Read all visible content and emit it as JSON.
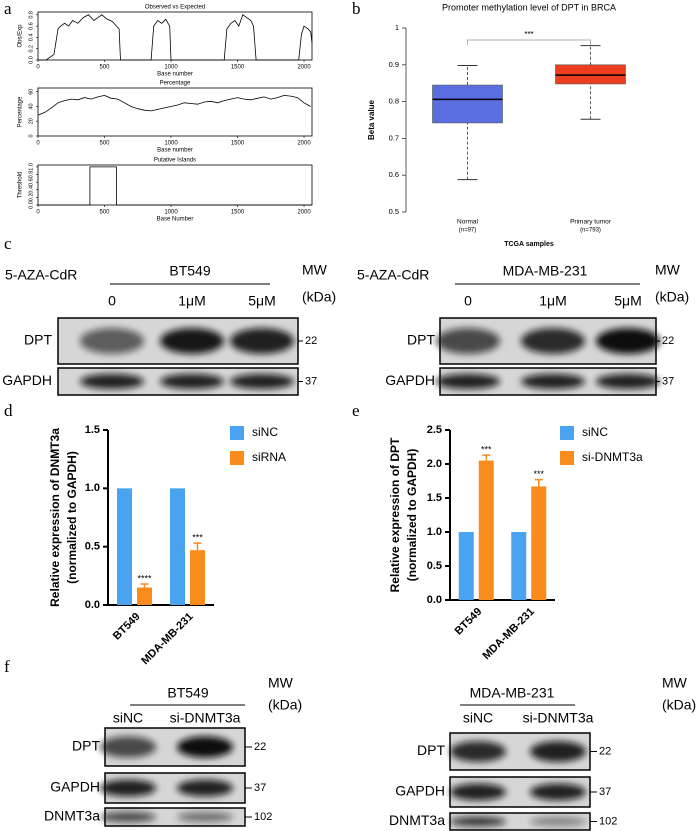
{
  "panel_labels": [
    "a",
    "b",
    "c",
    "d",
    "e",
    "f"
  ],
  "chart_data": [
    {
      "type": "line",
      "title": "Observed vs Expected",
      "xlabel": "Base number",
      "ylabel": "Obs/Exp",
      "x": [
        0,
        60,
        120,
        150,
        170,
        200,
        230,
        260,
        300,
        340,
        380,
        420,
        450,
        480,
        520,
        560,
        590,
        610,
        620,
        700,
        850,
        870,
        900,
        930,
        960,
        990,
        1000,
        1100,
        1400,
        1420,
        1450,
        1480,
        1510,
        1540,
        1570,
        1600,
        1620,
        1640,
        1700,
        1960,
        1980,
        2000,
        2030,
        2050,
        2060
      ],
      "values": [
        0,
        0,
        0.1,
        0.55,
        0.6,
        0.65,
        0.6,
        0.7,
        0.65,
        0.75,
        0.8,
        0.7,
        0.75,
        0.8,
        0.72,
        0.68,
        0.6,
        0.55,
        0,
        0,
        0,
        0.6,
        0.7,
        0.65,
        0.72,
        0.6,
        0,
        0,
        0,
        0.55,
        0.65,
        0.7,
        0.6,
        0.8,
        0.75,
        0.7,
        0.6,
        0,
        0,
        0,
        0.45,
        0.6,
        0.55,
        0.5,
        0.3
      ],
      "color": "#000000",
      "xlim": [
        0,
        2060
      ],
      "ylim": [
        0,
        0.85
      ],
      "xticks": [
        0,
        500,
        1000,
        1500,
        2000
      ],
      "yticks": [
        {
          "value": 0,
          "label": "0.0"
        },
        {
          "value": 0.2,
          "label": "0.2"
        },
        {
          "value": 0.4,
          "label": "0.4"
        },
        {
          "value": 0.6,
          "label": "0.6"
        },
        {
          "value": 0.8,
          "label": "0.8"
        }
      ]
    },
    {
      "type": "line",
      "title": "Percentage",
      "xlabel": "Base number",
      "ylabel": "Percentage",
      "x": [
        0,
        50,
        100,
        150,
        200,
        250,
        300,
        350,
        400,
        450,
        500,
        550,
        600,
        650,
        700,
        750,
        800,
        850,
        900,
        950,
        1000,
        1050,
        1100,
        1150,
        1200,
        1250,
        1300,
        1350,
        1400,
        1450,
        1500,
        1550,
        1600,
        1650,
        1700,
        1750,
        1800,
        1850,
        1900,
        1950,
        2000,
        2050
      ],
      "values": [
        28,
        32,
        38,
        45,
        48,
        50,
        49,
        52,
        50,
        53,
        55,
        51,
        50,
        45,
        40,
        37,
        35,
        34,
        36,
        38,
        40,
        42,
        45,
        44,
        43,
        46,
        47,
        45,
        48,
        50,
        52,
        50,
        49,
        51,
        53,
        50,
        52,
        55,
        54,
        52,
        45,
        40
      ],
      "color": "#000000",
      "xlim": [
        0,
        2060
      ],
      "ylim": [
        0,
        65
      ],
      "xticks": [
        0,
        500,
        1000,
        1500,
        2000
      ],
      "yticks": [
        0,
        20,
        40,
        60
      ]
    },
    {
      "type": "line",
      "title": "Putative Islands",
      "xlabel": "Base Number",
      "ylabel": "Threshold",
      "x": [
        0,
        390,
        390,
        590,
        590,
        2060
      ],
      "values": [
        0,
        0,
        1,
        1,
        0,
        0
      ],
      "color": "#000000",
      "xlim": [
        0,
        2060
      ],
      "ylim": [
        0,
        1.05
      ],
      "xticks": [
        0,
        500,
        1000,
        1500,
        2000
      ],
      "yticks": [
        {
          "value": 0,
          "label": "0.0"
        },
        {
          "value": 0.2,
          "label": "0.2"
        },
        {
          "value": 0.4,
          "label": "0.4"
        },
        {
          "value": 0.6,
          "label": "0.6"
        },
        {
          "value": 0.8,
          "label": "0.8"
        },
        {
          "value": 1,
          "label": "1.0"
        }
      ]
    },
    {
      "type": "box",
      "title": "Promoter methylation level of DPT in BRCA",
      "xlabel": "TCGA samples",
      "ylabel": "Beta value",
      "categories": [
        "Normal",
        "Primary tumor"
      ],
      "category_notes": [
        "(n=97)",
        "(n=793)"
      ],
      "stats": [
        {
          "min": 0.588,
          "q1": 0.742,
          "median": 0.806,
          "q3": 0.845,
          "max": 0.898
        },
        {
          "min": 0.752,
          "q1": 0.848,
          "median": 0.872,
          "q3": 0.9,
          "max": 0.952
        }
      ],
      "colors": [
        "#5a6ee0",
        "#ec3d1f"
      ],
      "significance": "***",
      "ylim": [
        0.5,
        1
      ],
      "yticks": [
        0.5,
        0.6,
        0.7,
        0.8,
        0.9,
        1
      ]
    },
    {
      "type": "bar",
      "ylabel": [
        "Relative expression of DNMT3a",
        "(normalized to GAPDH)"
      ],
      "categories": [
        "BT549",
        "MDA-MB-231"
      ],
      "series": [
        {
          "name": "siNC",
          "color": "#4aa3f0",
          "values": [
            1,
            1
          ]
        },
        {
          "name": "siRNA",
          "color": "#f98b1d",
          "values": [
            0.15,
            0.47
          ],
          "errors": [
            0.03,
            0.06
          ],
          "annotations": [
            "****",
            "***"
          ]
        }
      ],
      "ylim": [
        0,
        1.5
      ],
      "yticks": [
        {
          "value": 0,
          "label": "0.0"
        },
        {
          "value": 0.5,
          "label": "0.5"
        },
        {
          "value": 1,
          "label": "1.0"
        },
        {
          "value": 1.5,
          "label": "1.5"
        }
      ],
      "legend": "right"
    },
    {
      "type": "bar",
      "ylabel": [
        "Relative expression of DPT",
        "(normalized to GAPDH)"
      ],
      "categories": [
        "BT549",
        "MDA-MB-231"
      ],
      "series": [
        {
          "name": "siNC",
          "color": "#4aa3f0",
          "values": [
            1,
            1
          ]
        },
        {
          "name": "si-DNMT3a",
          "color": "#f98b1d",
          "values": [
            2.05,
            1.67
          ],
          "errors": [
            0.08,
            0.1
          ],
          "annotations": [
            "***",
            "***"
          ]
        }
      ],
      "ylim": [
        0,
        2.5
      ],
      "yticks": [
        {
          "value": 0,
          "label": "0.0"
        },
        {
          "value": 0.5,
          "label": "0.5"
        },
        {
          "value": 1,
          "label": "1.0"
        },
        {
          "value": 1.5,
          "label": "1.5"
        },
        {
          "value": 2,
          "label": "2.0"
        },
        {
          "value": 2.5,
          "label": "2.5"
        }
      ],
      "legend": "right"
    }
  ],
  "blots": [
    {
      "treatment": "5-AZA-CdR",
      "cell": "BT549",
      "mw": "MW",
      "unit": "(kDa)",
      "lanes": [
        "0",
        "1μM",
        "5μM"
      ],
      "rows": [
        {
          "label": "DPT",
          "kda": "22"
        },
        {
          "label": "GAPDH",
          "kda": "37"
        }
      ]
    },
    {
      "treatment": "5-AZA-CdR",
      "cell": "MDA-MB-231",
      "mw": "MW",
      "unit": "(kDa)",
      "lanes": [
        "0",
        "1μM",
        "5μM"
      ],
      "rows": [
        {
          "label": "DPT",
          "kda": "22"
        },
        {
          "label": "GAPDH",
          "kda": "37"
        }
      ]
    },
    {
      "cell": "BT549",
      "mw": "MW",
      "unit": "(kDa)",
      "lanes": [
        "siNC",
        "si-DNMT3a"
      ],
      "rows": [
        {
          "label": "DPT",
          "kda": "22"
        },
        {
          "label": "GAPDH",
          "kda": "37"
        },
        {
          "label": "DNMT3a",
          "kda": "102"
        }
      ]
    },
    {
      "cell": "MDA-MB-231",
      "mw": "MW",
      "unit": "(kDa)",
      "lanes": [
        "siNC",
        "si-DNMT3a"
      ],
      "rows": [
        {
          "label": "DPT",
          "kda": "22"
        },
        {
          "label": "GAPDH",
          "kda": "37"
        },
        {
          "label": "DNMT3a",
          "kda": "102"
        }
      ]
    }
  ]
}
